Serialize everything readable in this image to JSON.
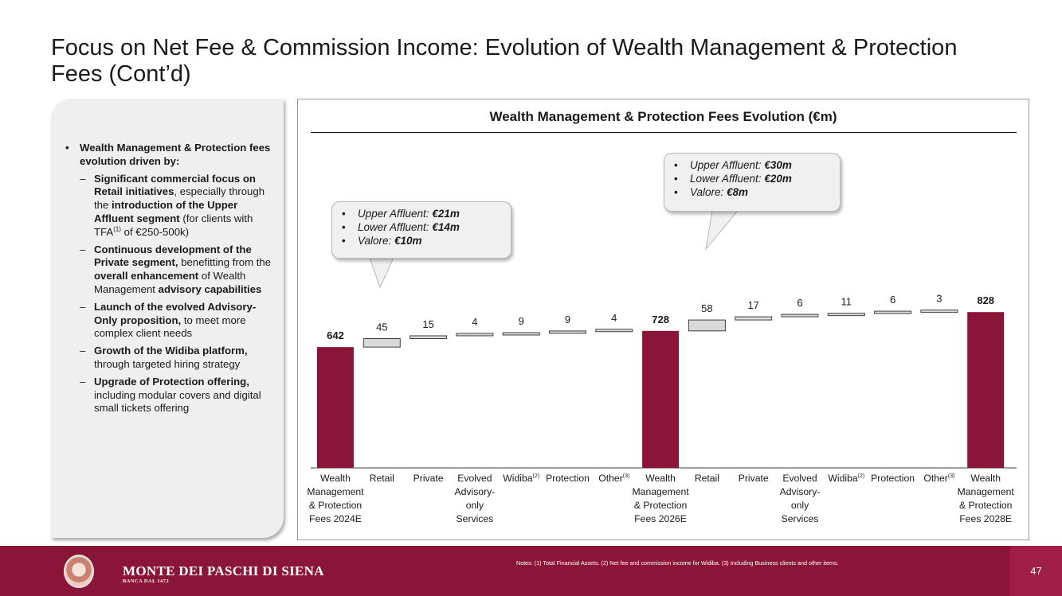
{
  "title": "Focus on Net Fee & Commission Income: Evolution of Wealth Management & Protection Fees (Cont’d)",
  "left_panel": {
    "bullet_main": "Wealth Management & Protection fees evolution driven by:",
    "items": [
      {
        "parts": [
          [
            "b",
            "Significant commercial focus on Retail initiatives"
          ],
          [
            "t",
            ", especially through the "
          ],
          [
            "b",
            "introduction of the Upper Affluent segment"
          ],
          [
            "t",
            " (for clients with TFA"
          ],
          [
            "sup",
            "(1)"
          ],
          [
            "t",
            " of €250-500k)"
          ]
        ]
      },
      {
        "parts": [
          [
            "b",
            "Continuous development of the Private segment,"
          ],
          [
            "t",
            " benefitting from the "
          ],
          [
            "b",
            "overall enhancement"
          ],
          [
            "t",
            " of Wealth Management "
          ],
          [
            "b",
            "advisory capabilities"
          ]
        ]
      },
      {
        "parts": [
          [
            "b",
            "Launch of the evolved Advisory-Only proposition,"
          ],
          [
            "t",
            " to meet more complex client needs"
          ]
        ]
      },
      {
        "parts": [
          [
            "b",
            "Growth of the Widiba platform,"
          ],
          [
            "t",
            " through targeted hiring strategy"
          ]
        ]
      },
      {
        "parts": [
          [
            "b",
            "Upgrade of Protection offering,"
          ],
          [
            "t",
            " including modular covers and digital small tickets offering"
          ]
        ]
      }
    ]
  },
  "callouts": [
    {
      "items": [
        {
          "label": "Upper Affluent: ",
          "value": "€21m"
        },
        {
          "label": "Lower Affluent: ",
          "value": "€14m"
        },
        {
          "label": "Valore: ",
          "value": "€10m"
        }
      ]
    },
    {
      "items": [
        {
          "label": "Upper Affluent: ",
          "value": "€30m"
        },
        {
          "label": "Lower Affluent: ",
          "value": "€20m"
        },
        {
          "label": "Valore: ",
          "value": "€8m"
        }
      ]
    }
  ],
  "chart_data": {
    "type": "bar",
    "subtype": "waterfall",
    "title": "Wealth Management & Protection Fees Evolution (€m)",
    "categories": [
      "Wealth Management & Protection Fees 2024E",
      "Retail",
      "Private",
      "Evolved Advisory-only Services",
      "Widiba(2)",
      "Protection",
      "Other(3)",
      "Wealth Management & Protection Fees 2026E",
      "Retail",
      "Private",
      "Evolved Advisory-only Services",
      "Widiba(2)",
      "Protection",
      "Other(3)",
      "Wealth Management & Protection Fees 2028E"
    ],
    "category_lines": [
      [
        "Wealth",
        "Management",
        "& Protection",
        "Fees 2024E"
      ],
      [
        "Retail"
      ],
      [
        "Private"
      ],
      [
        "Evolved",
        "Advisory-",
        "only",
        "Services"
      ],
      [
        "Widiba",
        "(2)"
      ],
      [
        "Protection"
      ],
      [
        "Other",
        "(3)"
      ],
      [
        "Wealth",
        "Management",
        "& Protection",
        "Fees 2026E"
      ],
      [
        "Retail"
      ],
      [
        "Private"
      ],
      [
        "Evolved",
        "Advisory-",
        "only",
        "Services"
      ],
      [
        "Widiba",
        "(2)"
      ],
      [
        "Protection"
      ],
      [
        "Other",
        "(3)"
      ],
      [
        "Wealth",
        "Management",
        "& Protection",
        "Fees 2028E"
      ]
    ],
    "values": [
      642,
      45,
      15,
      4,
      9,
      9,
      4,
      728,
      58,
      17,
      6,
      11,
      6,
      3,
      828
    ],
    "value_labels": [
      "642",
      "45",
      "15",
      "4",
      "9",
      "9",
      "4",
      "728",
      "58",
      "17",
      "6",
      "11",
      "6",
      "3",
      "828"
    ],
    "kinds": [
      "total",
      "delta",
      "delta",
      "delta",
      "delta",
      "delta",
      "delta",
      "total",
      "delta",
      "delta",
      "delta",
      "delta",
      "delta",
      "delta",
      "total"
    ],
    "colors": {
      "total": "#8b1538",
      "delta": "#d9d9d9",
      "delta_border": "#404040"
    }
  },
  "footer": {
    "bank_name": "MONTE DEI PASCHI DI SIENA",
    "bank_sub": "BANCA DAL 1472",
    "notes": "Notes: (1) Total Financial Assets. (2) Net fee and commission income for Widiba.  (3) Including Business clients and other items.",
    "page_number": "47"
  }
}
